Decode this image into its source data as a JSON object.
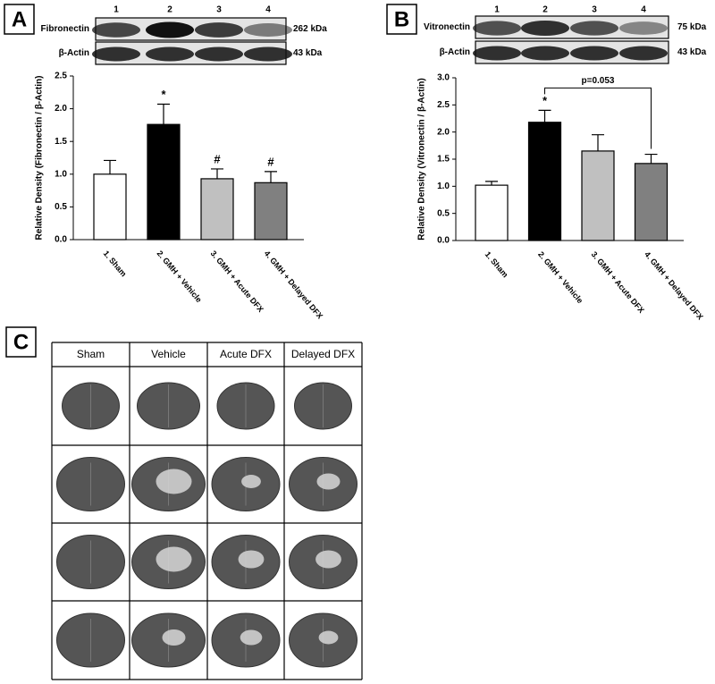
{
  "chart_data": [
    {
      "type": "bar",
      "panel_label": "A",
      "blot": {
        "lanes": [
          "1",
          "2",
          "3",
          "4"
        ],
        "rows": [
          {
            "label": "Fibronectin",
            "size": "262 kDa"
          },
          {
            "label": "β-Actin",
            "size": "43 kDa"
          }
        ]
      },
      "ylabel": "Relative Density (Fibronectin / β-Actin)",
      "categories": [
        "1. Sham",
        "2. GMH + Vehicle",
        "3. GMH + Acute DFX",
        "4. GMH + Delayed DFX"
      ],
      "values": [
        1.0,
        1.76,
        0.93,
        0.87
      ],
      "errors": [
        0.21,
        0.31,
        0.15,
        0.17
      ],
      "colors": [
        "#ffffff",
        "#000000",
        "#c0c0c0",
        "#808080"
      ],
      "markers": [
        null,
        "*",
        "#",
        "#"
      ],
      "ylim": [
        0,
        2.5
      ],
      "yticks": [
        {
          "value": 0,
          "label": "0.0"
        },
        {
          "value": 0.5,
          "label": "0.5"
        },
        {
          "value": 1,
          "label": "1.0"
        },
        {
          "value": 1.5,
          "label": "1.5"
        },
        {
          "value": 2,
          "label": "2.0"
        },
        {
          "value": 2.5,
          "label": "2.5"
        }
      ]
    },
    {
      "type": "bar",
      "panel_label": "B",
      "blot": {
        "lanes": [
          "1",
          "2",
          "3",
          "4"
        ],
        "rows": [
          {
            "label": "Vitronectin",
            "size": "75 kDa"
          },
          {
            "label": "β-Actin",
            "size": "43 kDa"
          }
        ]
      },
      "ylabel": "Relative Density (Vitronectin / β-Actin)",
      "categories": [
        "1. Sham",
        "2. GMH + Vehicle",
        "3. GMH + Acute DFX",
        "4. GMH + Delayed DFX"
      ],
      "values": [
        1.02,
        2.18,
        1.65,
        1.42
      ],
      "errors": [
        0.07,
        0.22,
        0.3,
        0.17
      ],
      "colors": [
        "#ffffff",
        "#000000",
        "#c0c0c0",
        "#808080"
      ],
      "markers": [
        null,
        "*",
        null,
        null
      ],
      "bracket": {
        "text": "p=0.053",
        "between": [
          1,
          3
        ]
      },
      "ylim": [
        0,
        3
      ],
      "yticks": [
        {
          "value": 0,
          "label": "0.0"
        },
        {
          "value": 0.5,
          "label": "0.5"
        },
        {
          "value": 1,
          "label": "1.0"
        },
        {
          "value": 1.5,
          "label": "1.5"
        },
        {
          "value": 2,
          "label": "2.0"
        },
        {
          "value": 2.5,
          "label": "2.5"
        },
        {
          "value": 3,
          "label": "3.0"
        }
      ]
    }
  ],
  "panel_c": {
    "label": "C",
    "columns": [
      "Sham",
      "Vehicle",
      "Acute DFX",
      "Delayed DFX"
    ]
  }
}
